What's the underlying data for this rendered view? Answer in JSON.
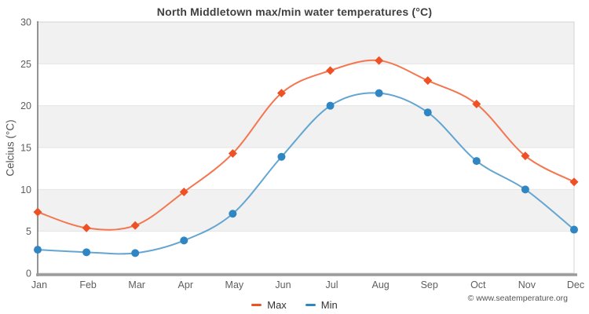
{
  "title": "North Middletown max/min water temperatures (°C)",
  "y_axis_title": "Celcius (°C)",
  "footer": "© www.seatemperature.org",
  "legend": [
    {
      "label": "Max",
      "color": "#ee5125"
    },
    {
      "label": "Min",
      "color": "#2f86c2"
    }
  ],
  "colors": {
    "band": "#f1f1f1",
    "gridline": "#e4e4e4",
    "frame": "#d4d4d4",
    "y_axis_line": "#808080",
    "x_axis_line": "#9b9b9b",
    "tick_label": "#5e5e5e"
  },
  "chart_data": {
    "type": "line",
    "title": "North Middletown max/min water temperatures (°C)",
    "xlabel": "",
    "ylabel": "Celcius (°C)",
    "categories": [
      "Jan",
      "Feb",
      "Mar",
      "Apr",
      "May",
      "Jun",
      "Jul",
      "Aug",
      "Sep",
      "Oct",
      "Nov",
      "Dec"
    ],
    "series": [
      {
        "name": "Max",
        "marker": "diamond",
        "marker_color": "#ee5125",
        "line_color": "#f4764f",
        "values": [
          7.3,
          5.4,
          5.7,
          9.7,
          14.3,
          21.5,
          24.2,
          25.4,
          23.0,
          20.2,
          14.0,
          10.9
        ]
      },
      {
        "name": "Min",
        "marker": "circle",
        "marker_color": "#2f86c2",
        "line_color": "#64a6d1",
        "values": [
          2.8,
          2.5,
          2.4,
          3.9,
          7.1,
          13.9,
          20.0,
          21.5,
          19.2,
          13.4,
          10.0,
          5.2
        ]
      }
    ],
    "ylim": [
      0,
      30
    ],
    "ytick_step": 5,
    "yticks": [
      0,
      5,
      10,
      15,
      20,
      25,
      30
    ],
    "grid": "alternating horizontal bands, gray on 5-10 / 15-20 / 25-30",
    "legend_position": "bottom center"
  }
}
